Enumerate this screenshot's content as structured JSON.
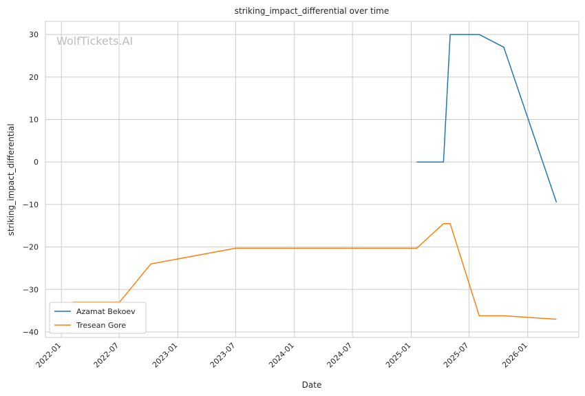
{
  "watermark": "WolfTickets.AI",
  "chart_data": {
    "type": "line",
    "title": "striking_impact_differential over time",
    "xlabel": "Date",
    "ylabel": "striking_impact_differential",
    "x_axis_type": "date",
    "xlim": [
      "2021-11-12",
      "2026-06-10"
    ],
    "ylim": [
      -41.3,
      33.1
    ],
    "x_ticks": [
      "2022-01",
      "2022-07",
      "2023-01",
      "2023-07",
      "2024-01",
      "2024-07",
      "2025-01",
      "2025-07",
      "2026-01"
    ],
    "y_ticks": [
      30,
      20,
      10,
      0,
      -10,
      -20,
      -30,
      -40
    ],
    "grid": true,
    "legend_position": "lower-left",
    "series": [
      {
        "name": "Azamat Bekoev",
        "color": "#1f77b4",
        "points": [
          {
            "x": "2025-01-18",
            "y": 0
          },
          {
            "x": "2025-04-12",
            "y": 0
          },
          {
            "x": "2025-05-03",
            "y": 30
          },
          {
            "x": "2025-08-02",
            "y": 30
          },
          {
            "x": "2025-10-18",
            "y": 27
          },
          {
            "x": "2026-04-01",
            "y": -9.5
          }
        ]
      },
      {
        "name": "Tresean Gore",
        "color": "#ff7f0e",
        "points": [
          {
            "x": "2022-02-05",
            "y": -33
          },
          {
            "x": "2022-07-02",
            "y": -33
          },
          {
            "x": "2022-10-08",
            "y": -24
          },
          {
            "x": "2023-07-01",
            "y": -20.3
          },
          {
            "x": "2025-01-18",
            "y": -20.3
          },
          {
            "x": "2025-04-12",
            "y": -14.5
          },
          {
            "x": "2025-05-03",
            "y": -14.5
          },
          {
            "x": "2025-08-02",
            "y": -36.2
          },
          {
            "x": "2025-10-18",
            "y": -36.2
          },
          {
            "x": "2026-04-01",
            "y": -37
          }
        ]
      }
    ]
  }
}
